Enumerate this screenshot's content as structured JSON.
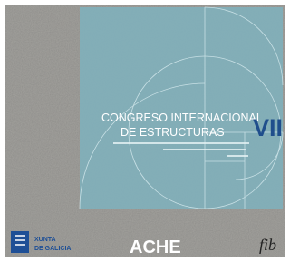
{
  "title": {
    "line1": "CONGRESO INTERNACIONAL",
    "line2": "DE  ESTRUCTURAS",
    "edition": "VII"
  },
  "logos": {
    "xunta": [
      "XUNTA",
      "DE GALICIA"
    ],
    "ache": "ACHE",
    "fib": "fib"
  }
}
